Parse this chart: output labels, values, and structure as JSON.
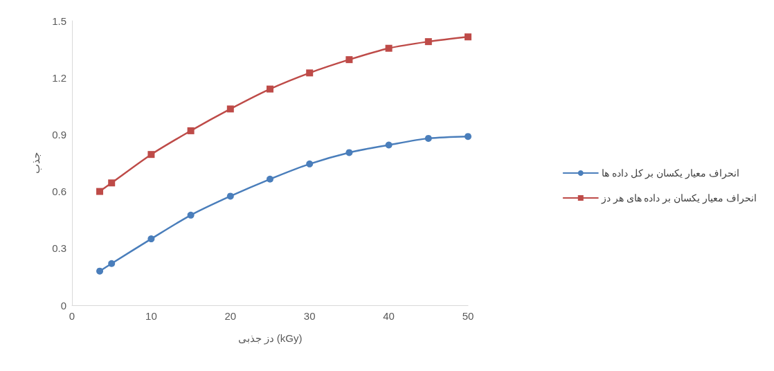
{
  "chart_data": {
    "type": "line",
    "xlabel": "دز جذبی (kGy)",
    "ylabel": "جذب",
    "x": [
      3.5,
      5,
      10,
      15,
      20,
      25,
      30,
      35,
      40,
      45,
      50
    ],
    "series": [
      {
        "name": "انحراف معیار یکسان بر کل داده ها",
        "color": "#4a7ebb",
        "marker": "circle",
        "values": [
          0.18,
          0.22,
          0.35,
          0.475,
          0.575,
          0.665,
          0.745,
          0.805,
          0.845,
          0.88,
          0.89
        ]
      },
      {
        "name": "انحراف معیار یکسان بر داده های هر دز",
        "color": "#be4b48",
        "marker": "square",
        "values": [
          0.6,
          0.645,
          0.795,
          0.92,
          1.035,
          1.14,
          1.225,
          1.295,
          1.355,
          1.39,
          1.415
        ]
      }
    ],
    "xlim": [
      0,
      50
    ],
    "xticks": [
      0,
      10,
      20,
      30,
      40,
      50
    ],
    "ylim": [
      0,
      1.5
    ],
    "yticks": [
      0,
      0.3,
      0.6,
      0.9,
      1.2,
      1.5
    ],
    "grid": false,
    "legend": "right",
    "line_style": "solid"
  }
}
